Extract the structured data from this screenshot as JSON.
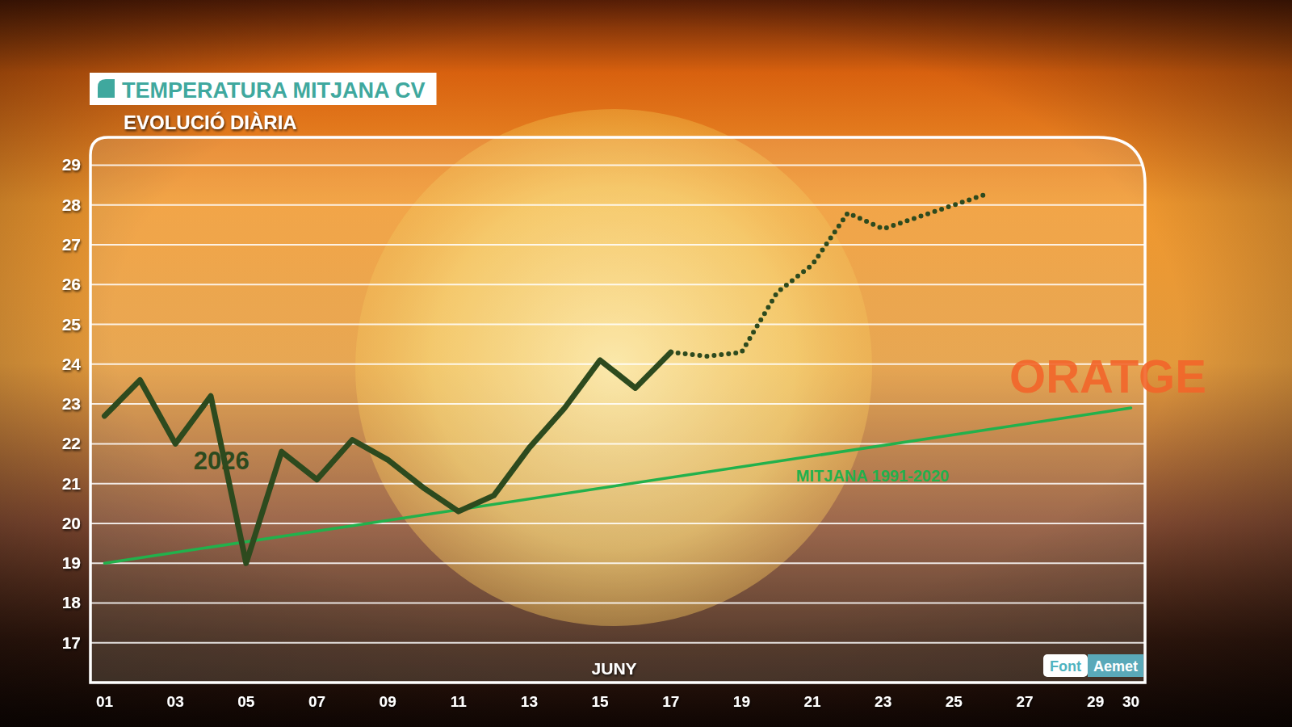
{
  "chart_data": {
    "type": "line",
    "title": "TEMPERATURA MITJANA CV",
    "subtitle": "EVOLUCIÓ DIÀRIA",
    "x_label": "JUNY",
    "source_label": "Font",
    "source": "Aemet",
    "watermark": "ORATGE",
    "xlim": [
      0.6,
      30.4
    ],
    "xticks": [
      {
        "value": 1,
        "label": "01"
      },
      {
        "value": 3,
        "label": "03"
      },
      {
        "value": 5,
        "label": "05"
      },
      {
        "value": 7,
        "label": "07"
      },
      {
        "value": 9,
        "label": "09"
      },
      11,
      13,
      15,
      17,
      19,
      21,
      23,
      25,
      27,
      29,
      30
    ],
    "ylim": [
      16,
      29.7
    ],
    "yticks": [
      17,
      18,
      19,
      20,
      21,
      22,
      23,
      24,
      25,
      26,
      27,
      28,
      29
    ],
    "grid": true,
    "series": [
      {
        "name": "2026",
        "color": "#2d4a1e",
        "line_style": "solid",
        "x": [
          1,
          2,
          3,
          4,
          5,
          6,
          7,
          8,
          9,
          10,
          11,
          12,
          13,
          14,
          15,
          16,
          17
        ],
        "values": [
          22.7,
          23.6,
          22.0,
          23.2,
          19.0,
          21.8,
          21.1,
          22.1,
          21.6,
          20.9,
          20.3,
          20.7,
          21.9,
          22.9,
          24.1,
          23.4,
          24.3
        ]
      },
      {
        "color": "#2d4a1e",
        "line_style": "dotted",
        "x": [
          17,
          18,
          19,
          20,
          21,
          22,
          23,
          24,
          25,
          26
        ],
        "values": [
          24.3,
          24.2,
          24.3,
          25.8,
          26.5,
          27.8,
          27.4,
          27.7,
          28.0,
          28.3
        ]
      },
      {
        "name": "MITJANA 1991-2020",
        "color": "#22b14c",
        "line_style": "solid",
        "x": [
          1,
          30
        ],
        "values": [
          19.0,
          22.9
        ]
      }
    ]
  }
}
